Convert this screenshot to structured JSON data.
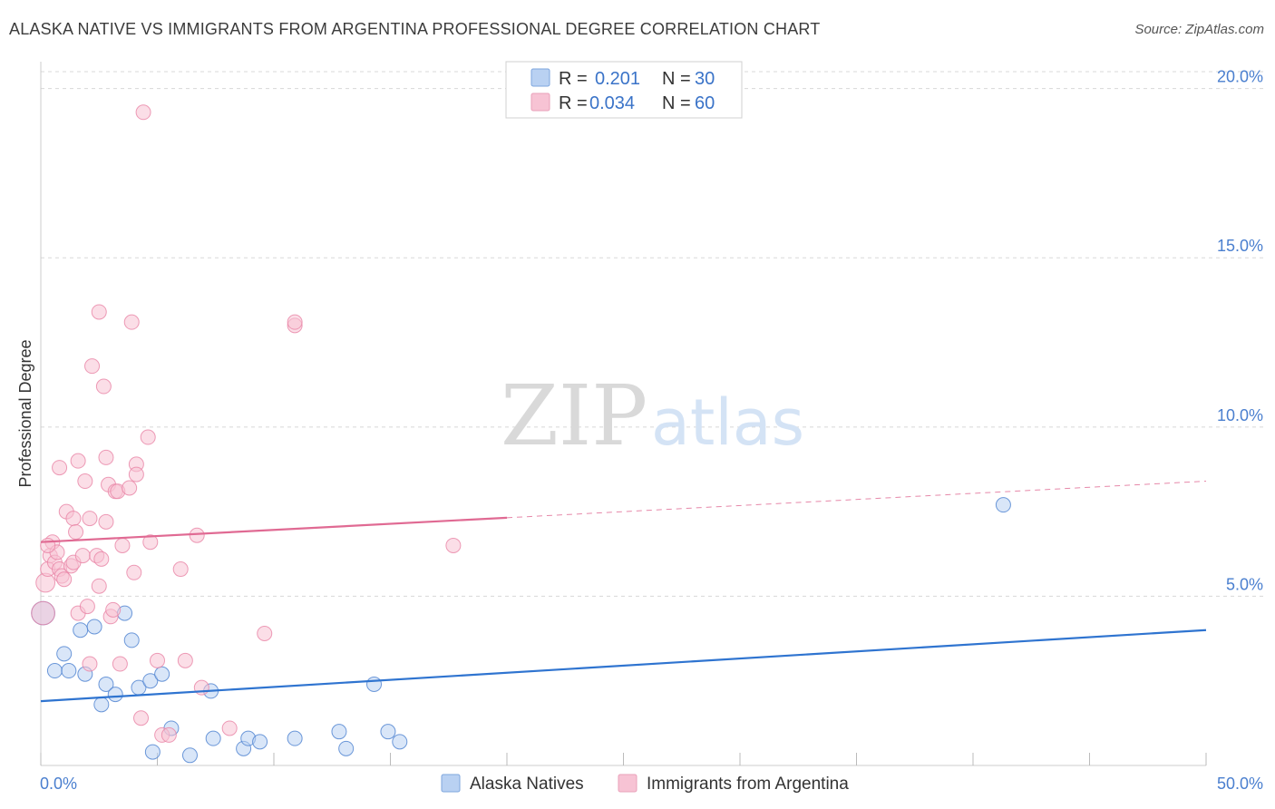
{
  "title": "ALASKA NATIVE VS IMMIGRANTS FROM ARGENTINA PROFESSIONAL DEGREE CORRELATION CHART",
  "source": "Source: ZipAtlas.com",
  "watermark": {
    "zip": "ZIP",
    "atlas": "atlas"
  },
  "colors": {
    "blue": "#4a7fcf",
    "blue_fill": "#b9d1f2",
    "blue_line": "#2f74d0",
    "pink": "#e883a5",
    "pink_fill": "#f7c3d4",
    "pink_line": "#e06a93",
    "grid": "#d8d8d8",
    "tick_text": "#4a7fcf"
  },
  "legend": {
    "rows": [
      {
        "r_label": "R =",
        "r_value": "0.201",
        "n_label": "N =",
        "n_value": "30",
        "color": "blue"
      },
      {
        "r_label": "R =",
        "r_value": "0.034",
        "n_label": "N =",
        "n_value": "60",
        "color": "pink"
      }
    ]
  },
  "chart_data": {
    "type": "scatter",
    "title": "ALASKA NATIVE VS IMMIGRANTS FROM ARGENTINA PROFESSIONAL DEGREE CORRELATION CHART",
    "xlabel": "",
    "ylabel": "Professional Degree",
    "xlim": [
      0,
      50
    ],
    "ylim": [
      0,
      20.5
    ],
    "x_tick_labels": [
      "0.0%",
      "50.0%"
    ],
    "y_ticks": [
      5,
      10,
      15,
      20
    ],
    "y_tick_labels": [
      "5.0%",
      "10.0%",
      "15.0%",
      "20.0%"
    ],
    "grid": true,
    "legend_position": "top-center",
    "series": [
      {
        "name": "Alaska Natives",
        "color": "blue",
        "r": 0.201,
        "n": 30,
        "trend": {
          "x0": 0,
          "y0": 1.9,
          "x1": 50,
          "y1": 4.0,
          "dashed_from": null
        },
        "points": [
          [
            0.1,
            4.5,
            1.6
          ],
          [
            1.0,
            3.3,
            1
          ],
          [
            0.6,
            2.8,
            1
          ],
          [
            1.2,
            2.8,
            1
          ],
          [
            1.7,
            4.0,
            1
          ],
          [
            1.9,
            2.7,
            1
          ],
          [
            2.3,
            4.1,
            1
          ],
          [
            2.6,
            1.8,
            1
          ],
          [
            2.8,
            2.4,
            1
          ],
          [
            3.2,
            2.1,
            1
          ],
          [
            3.6,
            4.5,
            1
          ],
          [
            3.9,
            3.7,
            1
          ],
          [
            4.2,
            2.3,
            1
          ],
          [
            4.7,
            2.5,
            1
          ],
          [
            4.8,
            0.4,
            1
          ],
          [
            5.2,
            2.7,
            1
          ],
          [
            5.6,
            1.1,
            1
          ],
          [
            6.4,
            0.3,
            1
          ],
          [
            7.3,
            2.2,
            1
          ],
          [
            7.4,
            0.8,
            1
          ],
          [
            8.7,
            0.5,
            1
          ],
          [
            8.9,
            0.8,
            1
          ],
          [
            9.4,
            0.7,
            1
          ],
          [
            10.9,
            0.8,
            1
          ],
          [
            12.8,
            1.0,
            1
          ],
          [
            13.1,
            0.5,
            1
          ],
          [
            14.3,
            2.4,
            1
          ],
          [
            14.9,
            1.0,
            1
          ],
          [
            15.4,
            0.7,
            1
          ],
          [
            41.3,
            7.7,
            1
          ]
        ]
      },
      {
        "name": "Immigrants from Argentina",
        "color": "pink",
        "r": 0.034,
        "n": 60,
        "trend": {
          "x0": 0,
          "y0": 6.6,
          "x1": 50,
          "y1": 8.4,
          "dashed_from": 20
        },
        "points": [
          [
            0.1,
            4.5,
            1.6
          ],
          [
            0.2,
            5.4,
            1.3
          ],
          [
            0.3,
            5.8,
            1
          ],
          [
            0.4,
            6.2,
            1
          ],
          [
            0.5,
            6.6,
            1
          ],
          [
            0.6,
            6.0,
            1
          ],
          [
            0.7,
            6.3,
            1
          ],
          [
            0.8,
            5.8,
            1
          ],
          [
            0.8,
            8.8,
            1
          ],
          [
            0.9,
            5.6,
            1
          ],
          [
            1.0,
            5.5,
            1
          ],
          [
            1.1,
            7.5,
            1
          ],
          [
            1.3,
            5.9,
            1
          ],
          [
            1.4,
            6.0,
            1
          ],
          [
            1.4,
            7.3,
            1
          ],
          [
            1.5,
            6.9,
            1
          ],
          [
            1.6,
            4.5,
            1
          ],
          [
            1.6,
            9.0,
            1
          ],
          [
            1.8,
            6.2,
            1
          ],
          [
            1.9,
            8.4,
            1
          ],
          [
            2.0,
            4.7,
            1
          ],
          [
            2.1,
            7.3,
            1
          ],
          [
            2.1,
            3.0,
            1
          ],
          [
            2.2,
            11.8,
            1
          ],
          [
            2.4,
            6.2,
            1
          ],
          [
            2.5,
            5.3,
            1
          ],
          [
            2.5,
            13.4,
            1
          ],
          [
            2.6,
            6.1,
            1
          ],
          [
            2.7,
            11.2,
            1
          ],
          [
            2.8,
            7.2,
            1
          ],
          [
            2.8,
            9.1,
            1
          ],
          [
            2.9,
            8.3,
            1
          ],
          [
            3.0,
            4.4,
            1
          ],
          [
            3.1,
            4.6,
            1
          ],
          [
            3.2,
            8.1,
            1
          ],
          [
            3.3,
            8.1,
            1
          ],
          [
            3.4,
            3.0,
            1
          ],
          [
            3.5,
            6.5,
            1
          ],
          [
            3.8,
            8.2,
            1
          ],
          [
            3.9,
            13.1,
            1
          ],
          [
            4.0,
            5.7,
            1
          ],
          [
            4.1,
            8.9,
            1
          ],
          [
            4.1,
            8.6,
            1
          ],
          [
            4.3,
            1.4,
            1
          ],
          [
            4.4,
            19.3,
            1
          ],
          [
            4.6,
            9.7,
            1
          ],
          [
            4.7,
            6.6,
            1
          ],
          [
            5.0,
            3.1,
            1
          ],
          [
            5.2,
            0.9,
            1
          ],
          [
            5.5,
            0.9,
            1
          ],
          [
            6.0,
            5.8,
            1
          ],
          [
            6.2,
            3.1,
            1
          ],
          [
            6.7,
            6.8,
            1
          ],
          [
            6.9,
            2.3,
            1
          ],
          [
            8.1,
            1.1,
            1
          ],
          [
            9.6,
            3.9,
            1
          ],
          [
            10.9,
            13.0,
            1
          ],
          [
            10.9,
            13.1,
            1
          ],
          [
            17.7,
            6.5,
            1
          ],
          [
            0.3,
            6.5,
            1
          ]
        ]
      }
    ]
  },
  "bottom_legend": {
    "items": [
      {
        "label": "Alaska Natives",
        "color": "blue"
      },
      {
        "label": "Immigrants from Argentina",
        "color": "pink"
      }
    ]
  }
}
